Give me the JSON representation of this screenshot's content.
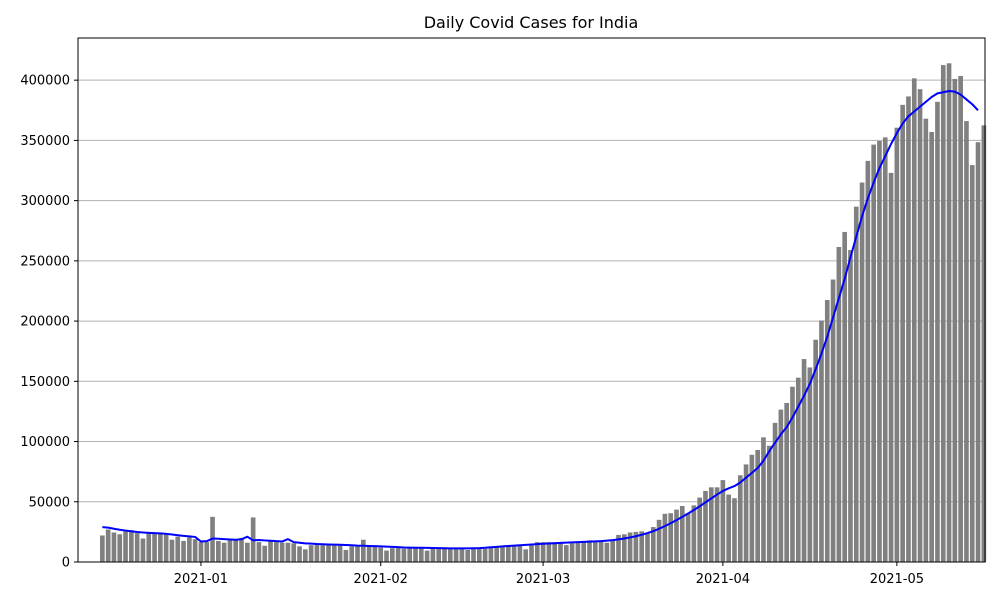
{
  "chart_data": {
    "type": "bar",
    "title": "Daily Covid Cases for India",
    "xlabel": "",
    "ylabel": "",
    "start_date": "2020-12-15",
    "end_date": "2021-05-12",
    "x_ticks": [
      "2021-01",
      "2021-02",
      "2021-03",
      "2021-04",
      "2021-05"
    ],
    "y_ticks": [
      "0",
      "50000",
      "100000",
      "150000",
      "200000",
      "250000",
      "300000",
      "350000",
      "400000"
    ],
    "ylim": [
      0,
      435000
    ],
    "grid": "horizontal",
    "colors": {
      "bars": "#808080",
      "line": "#0000ff"
    },
    "series": [
      {
        "type": "bar",
        "values": [
          22000,
          27000,
          24500,
          23000,
          25500,
          26500,
          24000,
          19500,
          23500,
          24000,
          24000,
          23500,
          18500,
          21000,
          17500,
          20500,
          19000,
          16500,
          16500,
          37500,
          17500,
          16000,
          18000,
          18000,
          20000,
          16000,
          37000,
          16500,
          13500,
          17000,
          16500,
          16000,
          16000,
          15500,
          13000,
          10500,
          14000,
          14500,
          14000,
          14500,
          15000,
          14000,
          10000,
          13000,
          14000,
          18500,
          12500,
          12500,
          12000,
          9500,
          11500,
          12000,
          11000,
          12000,
          11500,
          11500,
          9500,
          11500,
          11000,
          11500,
          12000,
          11500,
          11500,
          10000,
          12000,
          11000,
          11000,
          12000,
          12500,
          13500,
          14000,
          14000,
          14000,
          10500,
          14000,
          16500,
          16500,
          16500,
          16500,
          16500,
          14000,
          15500,
          17000,
          16500,
          18000,
          17500,
          18000,
          16000,
          18500,
          22500,
          23000,
          24500,
          25000,
          25500,
          24500,
          29000,
          35000,
          40000,
          40500,
          43500,
          46500,
          40500,
          47000,
          53500,
          59000,
          62000,
          62000,
          68000,
          56000,
          53000,
          72000,
          81000,
          89000,
          93000,
          103500,
          96500,
          115500,
          126500,
          132000,
          145500,
          153000,
          168500,
          161500,
          184500,
          200500,
          217500,
          234500,
          261500,
          274000,
          259000,
          295000,
          315000,
          333000,
          346500,
          349500,
          352500,
          323000,
          360500,
          379500,
          386500,
          401500,
          392500,
          368000,
          357000,
          382000,
          412500,
          414000,
          401000,
          403500,
          366000,
          329500,
          348500,
          362500
        ]
      },
      {
        "type": "line",
        "name": "",
        "values": [
          29000,
          28500,
          27600,
          26800,
          26100,
          25400,
          24900,
          24500,
          24200,
          24000,
          23800,
          23400,
          22800,
          22200,
          21700,
          21300,
          20800,
          17000,
          17300,
          19500,
          19300,
          19000,
          18700,
          18500,
          18900,
          21000,
          18000,
          18300,
          17900,
          17600,
          17300,
          17000,
          19000,
          16500,
          16000,
          15500,
          15300,
          14900,
          14700,
          14500,
          14400,
          14300,
          14100,
          13900,
          13600,
          13500,
          13300,
          13200,
          13000,
          12800,
          12600,
          12300,
          12000,
          11900,
          11800,
          11800,
          11700,
          11600,
          11500,
          11400,
          11300,
          11300,
          11300,
          11300,
          11400,
          11500,
          11800,
          12200,
          12600,
          13000,
          13300,
          13600,
          13900,
          14200,
          14500,
          14800,
          15100,
          15400,
          15600,
          15900,
          16100,
          16300,
          16500,
          16700,
          16900,
          17100,
          17300,
          17700,
          18200,
          18800,
          19500,
          20400,
          21400,
          22600,
          24000,
          25600,
          27600,
          29800,
          32200,
          34800,
          37500,
          40300,
          43200,
          46200,
          49500,
          52800,
          56000,
          59000,
          61200,
          63000,
          66000,
          70000,
          74000,
          78000,
          84000,
          92000,
          99000,
          106000,
          112000,
          120000,
          129000,
          138000,
          148000,
          160000,
          173000,
          187000,
          203000,
          219000,
          235000,
          253000,
          270000,
          287000,
          302000,
          315000,
          327000,
          337000,
          347000,
          356000,
          364000,
          370000,
          374000,
          378000,
          382000,
          386000,
          389000,
          390000,
          391000,
          390500,
          388000,
          384000,
          380000,
          375000
        ]
      }
    ]
  }
}
